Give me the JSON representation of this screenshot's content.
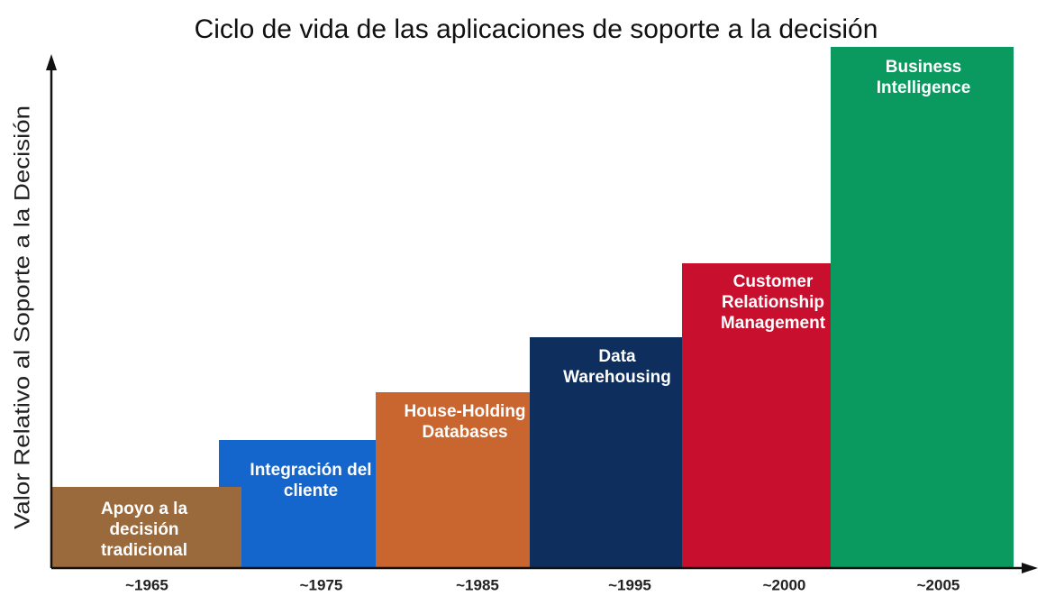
{
  "title": "Ciclo de vida de las aplicaciones de soporte a la decisión",
  "y_axis_label": "Valor Relativo al Soporte a la Decisión",
  "steps": [
    {
      "lines": [
        "Apoyo a la",
        "decisión",
        "tradicional"
      ],
      "period": "~1965",
      "color": "#9a6a3c"
    },
    {
      "lines": [
        "Integración del",
        "cliente"
      ],
      "period": "~1975",
      "color": "#1466cc"
    },
    {
      "lines": [
        "House-Holding",
        "Databases"
      ],
      "period": "~1985",
      "color": "#c9652f"
    },
    {
      "lines": [
        "Data",
        "Warehousing"
      ],
      "period": "~1995",
      "color": "#0e2e5e"
    },
    {
      "lines": [
        "Customer",
        "Relationship",
        "Management"
      ],
      "period": "~2000",
      "color": "#c8102e"
    },
    {
      "lines": [
        "Business",
        "Intelligence"
      ],
      "period": "~2005",
      "color": "#0a9a60"
    }
  ]
}
